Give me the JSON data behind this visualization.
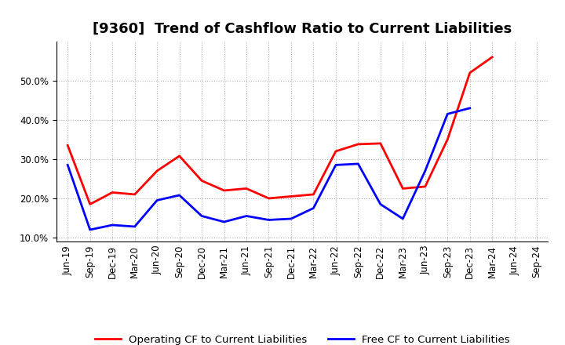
{
  "title": "[9360]  Trend of Cashflow Ratio to Current Liabilities",
  "x_labels": [
    "Jun-19",
    "Sep-19",
    "Dec-19",
    "Mar-20",
    "Jun-20",
    "Sep-20",
    "Dec-20",
    "Mar-21",
    "Jun-21",
    "Sep-21",
    "Dec-21",
    "Mar-22",
    "Jun-22",
    "Sep-22",
    "Dec-22",
    "Mar-23",
    "Jun-23",
    "Sep-23",
    "Dec-23",
    "Mar-24",
    "Jun-24",
    "Sep-24"
  ],
  "operating_cf": [
    0.335,
    0.185,
    0.215,
    0.21,
    0.27,
    0.308,
    0.245,
    0.22,
    0.225,
    0.2,
    0.205,
    0.21,
    0.32,
    0.338,
    0.34,
    0.225,
    0.23,
    0.35,
    0.52,
    0.56,
    null,
    null
  ],
  "free_cf": [
    0.285,
    0.12,
    0.132,
    0.128,
    0.195,
    0.208,
    0.155,
    0.14,
    0.155,
    0.145,
    0.148,
    0.175,
    0.285,
    0.288,
    0.185,
    0.148,
    0.27,
    0.415,
    0.43,
    null,
    null,
    null
  ],
  "operating_cf_color": "#ff0000",
  "free_cf_color": "#0000ff",
  "ylim_min": 0.09,
  "ylim_max": 0.6,
  "yticks": [
    0.1,
    0.2,
    0.3,
    0.4,
    0.5
  ],
  "background_color": "#ffffff",
  "grid_color": "#aaaaaa",
  "legend_operating": "Operating CF to Current Liabilities",
  "legend_free": "Free CF to Current Liabilities",
  "title_fontsize": 13,
  "tick_fontsize": 8.5,
  "legend_fontsize": 9.5
}
